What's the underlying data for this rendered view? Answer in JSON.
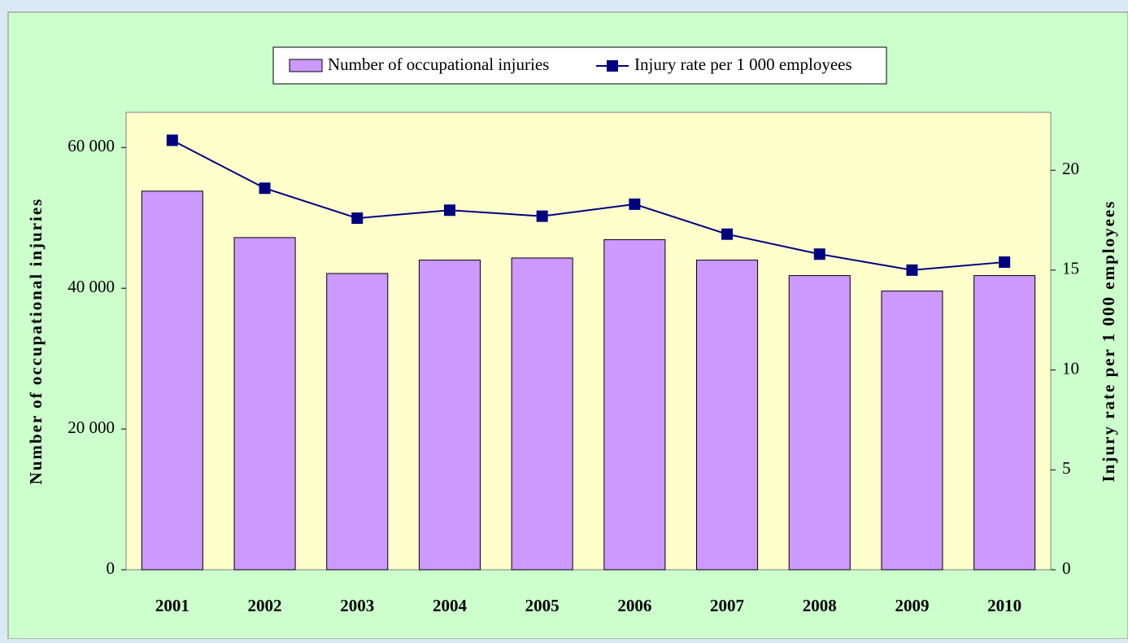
{
  "chart_data": {
    "type": "bar_line",
    "categories": [
      "2001",
      "2002",
      "2003",
      "2004",
      "2005",
      "2006",
      "2007",
      "2008",
      "2009",
      "2010"
    ],
    "series": [
      {
        "name": "Number of occupational injuries",
        "color": "#cc99ff",
        "type": "bar",
        "values": [
          53800,
          47200,
          42100,
          44000,
          44300,
          46900,
          44000,
          41800,
          39600,
          41800
        ]
      },
      {
        "name": "Injury rate per 1 000 employees",
        "color": "#000080",
        "type": "line",
        "axis": "y2",
        "values": [
          21.5,
          19.1,
          17.6,
          18.0,
          17.7,
          18.3,
          16.8,
          15.8,
          15.0,
          15.4
        ]
      }
    ],
    "y_label": "Number of occupational injuries",
    "y2_label": "Injury rate per 1 000 employees",
    "ylim": [
      0,
      65000
    ],
    "yticks": [
      0,
      {
        "value": 20000,
        "label": "20 000"
      },
      {
        "value": 40000,
        "label": "40 000"
      },
      {
        "value": 60000,
        "label": "60 000"
      }
    ],
    "y2lim": [
      0,
      22.9
    ],
    "y2ticks": [
      0,
      5,
      10,
      15,
      20
    ]
  }
}
